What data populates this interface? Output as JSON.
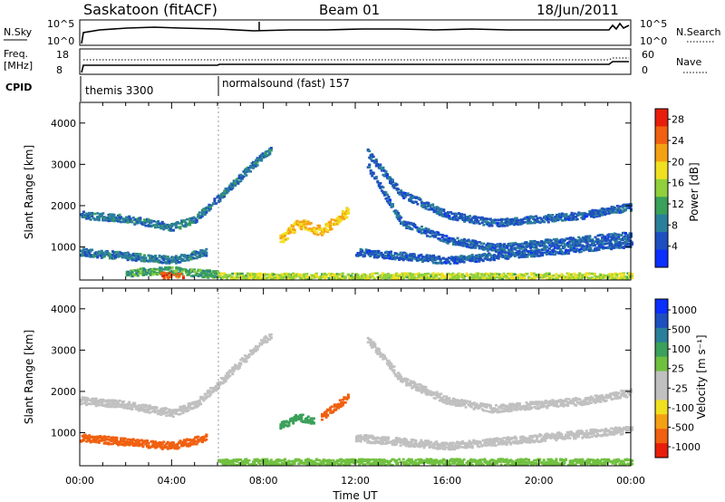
{
  "header": {
    "station": "Saskatoon  (fitACF)",
    "beam": "Beam 01",
    "date": "18/Jun/2011"
  },
  "top_panels": {
    "nsky_label": "N.Sky",
    "nsky_ticks": [
      "10^5",
      "10^0"
    ],
    "nsearch_ticks": [
      "10^5",
      "10^0"
    ],
    "nsearch_label": "N.Search",
    "freq_label": "Freq.",
    "freq_unit": "[MHz]",
    "freq_ticks": [
      "18",
      "8"
    ],
    "nave_ticks": [
      "60",
      "0"
    ],
    "nave_label": "Nave",
    "cpid_label": "CPID",
    "cpid_segments": [
      {
        "name": "themis 3300",
        "start_hour": 0,
        "end_hour": 6
      },
      {
        "name": "normalsound (fast) 157",
        "start_hour": 6,
        "end_hour": 24
      }
    ]
  },
  "colors": {
    "power_bar": [
      "#0a2fff",
      "#1e4fc0",
      "#2a7f9a",
      "#3aa05a",
      "#8fd03c",
      "#f0e020",
      "#f5a012",
      "#f06010",
      "#e81e0a"
    ],
    "velocity_bar": [
      "#e81e0a",
      "#f06010",
      "#f5a012",
      "#f0e020",
      "#c0c0c0",
      "#c0c0c0",
      "#70c040",
      "#3aa05a",
      "#2a7f9a",
      "#1e4fc0",
      "#0a2fff"
    ]
  },
  "chart_data": [
    {
      "type": "heatmap",
      "name": "Power",
      "ylabel": "Slant Range [km]",
      "xlabel": "",
      "xlim": [
        0,
        24
      ],
      "ylim": [
        200,
        4500
      ],
      "yticks": [
        "4000",
        "3000",
        "2000",
        "1000"
      ],
      "colorbar_label": "Power [dB]",
      "colorbar_ticks": [
        "28",
        "24",
        "20",
        "16",
        "12",
        "8",
        "4"
      ],
      "colorbar_range": [
        0,
        30
      ],
      "echo_bands": [
        {
          "x": [
            0,
            2,
            4,
            5,
            6,
            7.5,
            8.3
          ],
          "y": [
            1800,
            1700,
            1500,
            1700,
            2200,
            3000,
            3400
          ],
          "value": 8
        },
        {
          "x": [
            0,
            2,
            4,
            5.5
          ],
          "y": [
            900,
            800,
            700,
            900
          ],
          "value": 8
        },
        {
          "x": [
            2,
            4,
            6
          ],
          "y": [
            400,
            450,
            350
          ],
          "value": 12
        },
        {
          "x": [
            3.5,
            4.5
          ],
          "y": [
            300,
            250
          ],
          "value": 26
        },
        {
          "x": [
            8.7,
            9.5,
            10.5,
            11.7
          ],
          "y": [
            1200,
            1600,
            1400,
            1900
          ],
          "value": 20
        },
        {
          "x": [
            12.5,
            14,
            16,
            18,
            20,
            22,
            24
          ],
          "y": [
            3300,
            2300,
            1800,
            1600,
            1700,
            1800,
            2000
          ],
          "value": 6
        },
        {
          "x": [
            12.5,
            14,
            16,
            18,
            20,
            22,
            24
          ],
          "y": [
            3000,
            1600,
            1200,
            1000,
            1100,
            1200,
            1300
          ],
          "value": 6
        },
        {
          "x": [
            12,
            14,
            16,
            18,
            20,
            22,
            24
          ],
          "y": [
            900,
            800,
            700,
            800,
            900,
            1000,
            1100
          ],
          "value": 6
        },
        {
          "x": [
            6,
            10,
            14,
            18,
            22,
            24
          ],
          "y": [
            300,
            300,
            300,
            300,
            300,
            300
          ],
          "value": 16
        }
      ]
    },
    {
      "type": "heatmap",
      "name": "Velocity",
      "ylabel": "Slant Range [km]",
      "xlabel": "Time UT",
      "xlim": [
        0,
        24
      ],
      "ylim": [
        200,
        4500
      ],
      "yticks": [
        "4000",
        "3000",
        "2000",
        "1000"
      ],
      "xticks": [
        "00:00",
        "04:00",
        "08:00",
        "12:00",
        "16:00",
        "20:00",
        "00:00"
      ],
      "colorbar_label": "Velocity [m s⁻¹]",
      "colorbar_ticks": [
        "1000",
        "500",
        "100",
        "25",
        "-25",
        "-100",
        "-500",
        "-1000"
      ],
      "echo_bands": [
        {
          "x": [
            0,
            2,
            4,
            5,
            6,
            7.5,
            8.3
          ],
          "y": [
            1800,
            1700,
            1500,
            1700,
            2200,
            3000,
            3400
          ],
          "value": 0
        },
        {
          "x": [
            0,
            2,
            4,
            5.5
          ],
          "y": [
            900,
            800,
            700,
            900
          ],
          "value": -200
        },
        {
          "x": [
            8.7,
            9.5,
            10.2
          ],
          "y": [
            1200,
            1400,
            1300
          ],
          "value": 120
        },
        {
          "x": [
            10.5,
            11.7
          ],
          "y": [
            1400,
            1900
          ],
          "value": -150
        },
        {
          "x": [
            12.5,
            14,
            16,
            18,
            20,
            22,
            24
          ],
          "y": [
            3300,
            2300,
            1800,
            1600,
            1700,
            1800,
            2000
          ],
          "value": 0
        },
        {
          "x": [
            12,
            14,
            16,
            18,
            20,
            22,
            24
          ],
          "y": [
            900,
            800,
            700,
            800,
            900,
            1000,
            1100
          ],
          "value": 0
        },
        {
          "x": [
            6,
            10,
            14,
            18,
            22,
            24
          ],
          "y": [
            300,
            300,
            300,
            300,
            300,
            300
          ],
          "value": 60
        }
      ]
    }
  ]
}
